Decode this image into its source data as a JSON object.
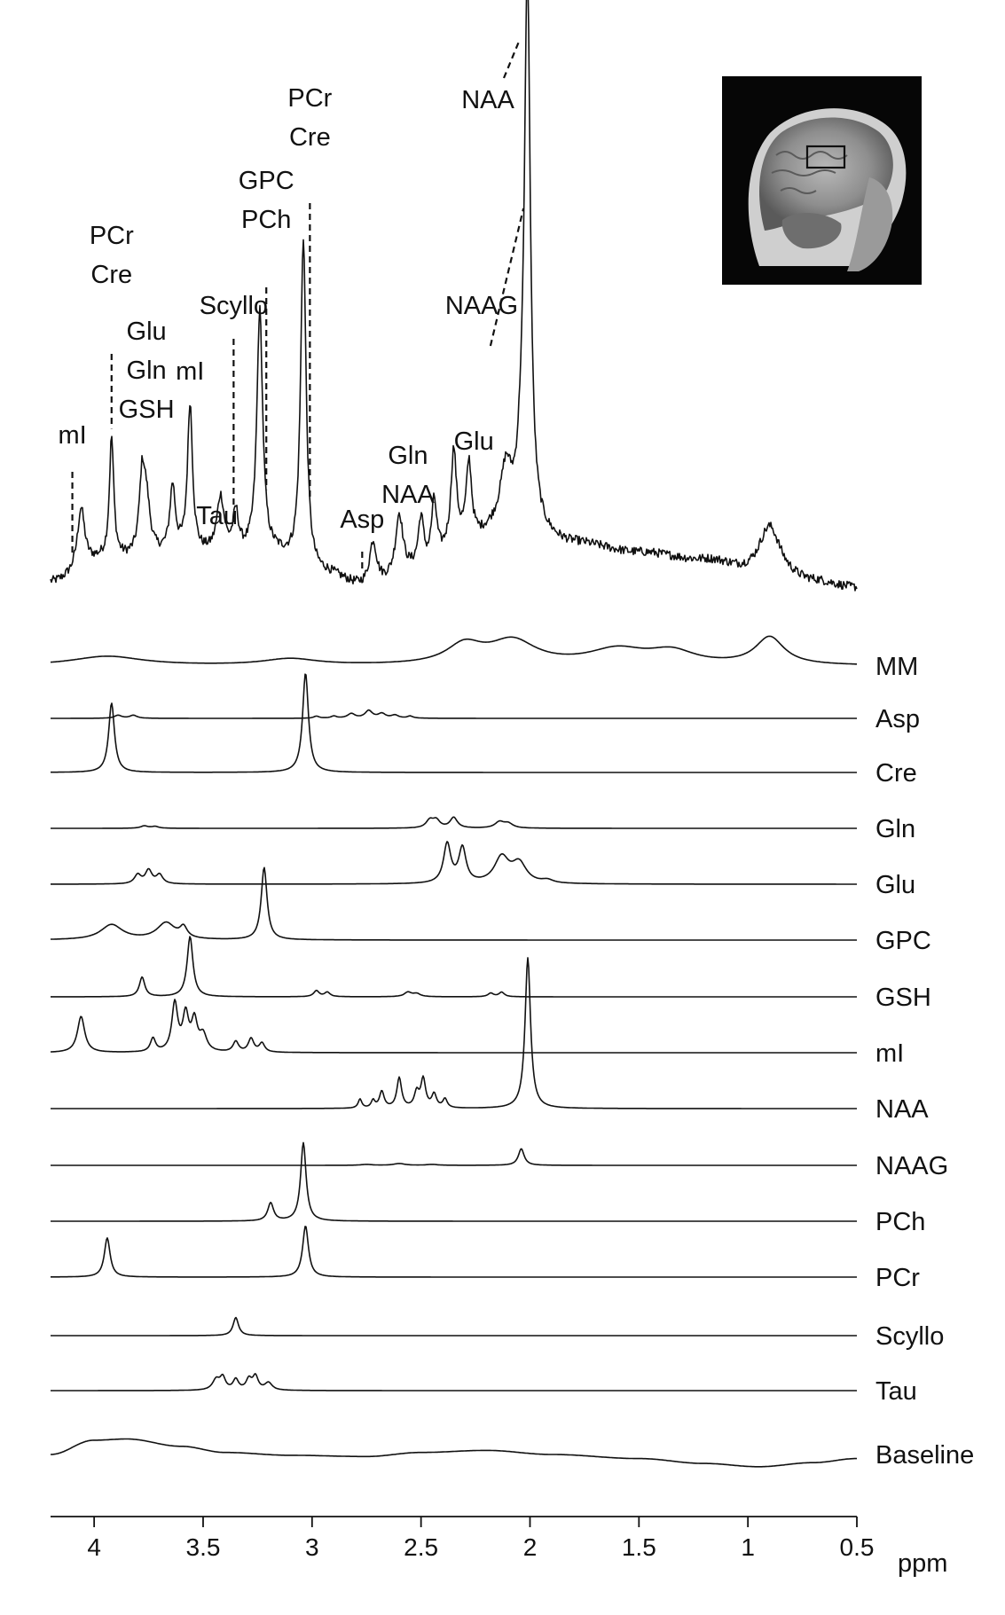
{
  "chart_data": {
    "type": "line",
    "xlabel": "ppm",
    "xlim": [
      4.2,
      0.5
    ],
    "x_reversed": true,
    "ticks": [
      {
        "value": 4.0,
        "label": "4"
      },
      {
        "value": 3.5,
        "label": "3.5"
      },
      {
        "value": 3.0,
        "label": "3"
      },
      {
        "value": 2.5,
        "label": "2.5"
      },
      {
        "value": 2.0,
        "label": "2"
      },
      {
        "value": 1.5,
        "label": "1.5"
      },
      {
        "value": 1.0,
        "label": "1"
      },
      {
        "value": 0.5,
        "label": "0.5"
      }
    ],
    "spectrum": {
      "noise": 0.05,
      "baseline_pts": [
        [
          4.2,
          0.05
        ],
        [
          3.95,
          0.25
        ],
        [
          3.6,
          0.3
        ],
        [
          3.2,
          0.3
        ],
        [
          2.95,
          0.12
        ],
        [
          2.75,
          0.0
        ],
        [
          2.5,
          0.15
        ],
        [
          2.3,
          0.4
        ],
        [
          2.1,
          0.55
        ],
        [
          1.8,
          0.4
        ],
        [
          1.5,
          0.32
        ],
        [
          1.2,
          0.25
        ],
        [
          0.95,
          0.12
        ],
        [
          0.7,
          0.05
        ],
        [
          0.5,
          0.0
        ]
      ],
      "peaks": [
        [
          4.06,
          0.55,
          0.02
        ],
        [
          3.92,
          1.1,
          0.012
        ],
        [
          3.78,
          0.65,
          0.015
        ],
        [
          3.76,
          0.45,
          0.02
        ],
        [
          3.64,
          0.6,
          0.015
        ],
        [
          3.56,
          1.35,
          0.014
        ],
        [
          3.42,
          0.5,
          0.02
        ],
        [
          3.35,
          0.35,
          0.015
        ],
        [
          3.24,
          2.2,
          0.016
        ],
        [
          3.04,
          3.0,
          0.015
        ],
        [
          2.72,
          0.4,
          0.02
        ],
        [
          2.6,
          0.55,
          0.02
        ],
        [
          2.5,
          0.45,
          0.015
        ],
        [
          2.44,
          0.55,
          0.015
        ],
        [
          2.35,
          0.85,
          0.015
        ],
        [
          2.28,
          0.7,
          0.015
        ],
        [
          2.11,
          0.5,
          0.03
        ],
        [
          2.04,
          0.4,
          0.02
        ],
        [
          2.012,
          5.0,
          0.016
        ],
        [
          0.9,
          0.45,
          0.06
        ]
      ]
    },
    "series": [
      {
        "name": "MM",
        "color": "#111111",
        "peaks": [
          [
            3.94,
            0.22,
            0.2
          ],
          [
            3.1,
            0.15,
            0.15
          ],
          [
            2.3,
            0.45,
            0.1
          ],
          [
            2.08,
            0.55,
            0.13
          ],
          [
            1.6,
            0.35,
            0.16
          ],
          [
            1.35,
            0.3,
            0.13
          ],
          [
            0.9,
            0.65,
            0.08
          ]
        ]
      },
      {
        "name": "Asp",
        "color": "#111111",
        "peaks": [
          [
            3.89,
            0.1,
            0.02
          ],
          [
            3.82,
            0.1,
            0.02
          ],
          [
            2.98,
            0.07,
            0.015
          ],
          [
            2.9,
            0.07,
            0.015
          ],
          [
            2.82,
            0.15,
            0.02
          ],
          [
            2.74,
            0.25,
            0.02
          ],
          [
            2.68,
            0.15,
            0.02
          ],
          [
            2.62,
            0.1,
            0.02
          ],
          [
            2.55,
            0.07,
            0.015
          ]
        ]
      },
      {
        "name": "Cre",
        "color": "#111111",
        "peaks": [
          [
            3.92,
            2.3,
            0.016
          ],
          [
            3.03,
            3.3,
            0.016
          ]
        ]
      },
      {
        "name": "Gln",
        "color": "#111111",
        "peaks": [
          [
            3.77,
            0.08,
            0.02
          ],
          [
            3.72,
            0.06,
            0.02
          ],
          [
            2.46,
            0.25,
            0.02
          ],
          [
            2.43,
            0.25,
            0.02
          ],
          [
            2.35,
            0.35,
            0.02
          ],
          [
            2.14,
            0.2,
            0.025
          ],
          [
            2.1,
            0.15,
            0.025
          ]
        ]
      },
      {
        "name": "Glu",
        "color": "#111111",
        "peaks": [
          [
            3.8,
            0.3,
            0.018
          ],
          [
            3.75,
            0.45,
            0.018
          ],
          [
            3.7,
            0.3,
            0.018
          ],
          [
            2.38,
            1.3,
            0.02
          ],
          [
            2.31,
            1.15,
            0.02
          ],
          [
            2.13,
            0.85,
            0.04
          ],
          [
            2.05,
            0.65,
            0.04
          ],
          [
            1.92,
            0.1,
            0.03
          ]
        ]
      },
      {
        "name": "GPC",
        "color": "#111111",
        "peaks": [
          [
            3.92,
            0.5,
            0.06
          ],
          [
            3.67,
            0.55,
            0.05
          ],
          [
            3.59,
            0.35,
            0.02
          ],
          [
            3.22,
            2.4,
            0.016
          ]
        ]
      },
      {
        "name": "GSH",
        "color": "#111111",
        "peaks": [
          [
            3.78,
            0.65,
            0.015
          ],
          [
            3.56,
            2.0,
            0.016
          ],
          [
            2.98,
            0.2,
            0.015
          ],
          [
            2.93,
            0.15,
            0.015
          ],
          [
            2.56,
            0.15,
            0.02
          ],
          [
            2.52,
            0.1,
            0.02
          ],
          [
            2.18,
            0.12,
            0.015
          ],
          [
            2.13,
            0.15,
            0.015
          ]
        ]
      },
      {
        "name": "mI",
        "color": "#111111",
        "peaks": [
          [
            4.06,
            1.2,
            0.02
          ],
          [
            3.63,
            1.6,
            0.016
          ],
          [
            3.58,
            1.2,
            0.016
          ],
          [
            3.54,
            1.0,
            0.016
          ],
          [
            3.73,
            0.45,
            0.014
          ],
          [
            3.5,
            0.55,
            0.02
          ],
          [
            3.35,
            0.35,
            0.015
          ],
          [
            3.28,
            0.45,
            0.015
          ],
          [
            3.23,
            0.3,
            0.015
          ]
        ]
      },
      {
        "name": "NAA",
        "color": "#111111",
        "peaks": [
          [
            2.78,
            0.3,
            0.01
          ],
          [
            2.72,
            0.25,
            0.01
          ],
          [
            2.68,
            0.55,
            0.013
          ],
          [
            2.6,
            1.0,
            0.013
          ],
          [
            2.52,
            0.5,
            0.013
          ],
          [
            2.49,
            0.95,
            0.013
          ],
          [
            2.44,
            0.45,
            0.013
          ],
          [
            2.39,
            0.3,
            0.012
          ],
          [
            2.01,
            5.0,
            0.015
          ]
        ]
      },
      {
        "name": "NAAG",
        "color": "#111111",
        "peaks": [
          [
            2.75,
            0.03,
            0.03
          ],
          [
            2.6,
            0.06,
            0.03
          ],
          [
            2.45,
            0.03,
            0.03
          ],
          [
            2.04,
            0.55,
            0.016
          ]
        ]
      },
      {
        "name": "PCh",
        "color": "#111111",
        "peaks": [
          [
            3.19,
            0.6,
            0.016
          ],
          [
            3.04,
            2.6,
            0.015
          ]
        ]
      },
      {
        "name": "PCr",
        "color": "#111111",
        "peaks": [
          [
            3.94,
            1.3,
            0.016
          ],
          [
            3.03,
            1.7,
            0.016
          ]
        ]
      },
      {
        "name": "Scyllo",
        "color": "#111111",
        "peaks": [
          [
            3.35,
            0.6,
            0.015
          ]
        ]
      },
      {
        "name": "Tau",
        "color": "#111111",
        "peaks": [
          [
            3.44,
            0.35,
            0.02
          ],
          [
            3.41,
            0.4,
            0.015
          ],
          [
            3.35,
            0.35,
            0.015
          ],
          [
            3.29,
            0.35,
            0.015
          ],
          [
            3.26,
            0.45,
            0.015
          ],
          [
            3.2,
            0.25,
            0.02
          ]
        ]
      },
      {
        "name": "Baseline",
        "color": "#111111",
        "curve": [
          [
            4.2,
            0.0
          ],
          [
            4.0,
            0.35
          ],
          [
            3.85,
            0.38
          ],
          [
            3.6,
            0.2
          ],
          [
            3.4,
            0.05
          ],
          [
            3.1,
            -0.02
          ],
          [
            2.75,
            -0.05
          ],
          [
            2.5,
            0.05
          ],
          [
            2.2,
            0.1
          ],
          [
            1.9,
            0.0
          ],
          [
            1.5,
            -0.1
          ],
          [
            1.2,
            -0.22
          ],
          [
            0.95,
            -0.3
          ],
          [
            0.7,
            -0.2
          ],
          [
            0.5,
            -0.1
          ]
        ]
      }
    ],
    "peak_labels": [
      {
        "lines": [
          "mI"
        ],
        "ppm": 4.1
      },
      {
        "lines": [
          "PCr",
          "Cre"
        ],
        "ppm": 3.92
      },
      {
        "lines": [
          "Glu",
          "Gln",
          "GSH"
        ],
        "ppm": 3.76
      },
      {
        "lines": [
          "mI"
        ],
        "ppm": 3.56
      },
      {
        "lines": [
          "Scyllo"
        ],
        "ppm": 3.36
      },
      {
        "lines": [
          "Tau"
        ],
        "ppm": 3.42
      },
      {
        "lines": [
          "GPC",
          "PCh"
        ],
        "ppm": 3.21
      },
      {
        "lines": [
          "PCr",
          "Cre"
        ],
        "ppm": 3.01
      },
      {
        "lines": [
          "Asp"
        ],
        "ppm": 2.77
      },
      {
        "lines": [
          "Gln",
          "NAA"
        ],
        "ppm": 2.56
      },
      {
        "lines": [
          "Glu"
        ],
        "ppm": 2.27
      },
      {
        "lines": [
          "NAAG"
        ],
        "ppm": 2.1
      },
      {
        "lines": [
          "NAA"
        ],
        "ppm": 2.01
      }
    ]
  }
}
